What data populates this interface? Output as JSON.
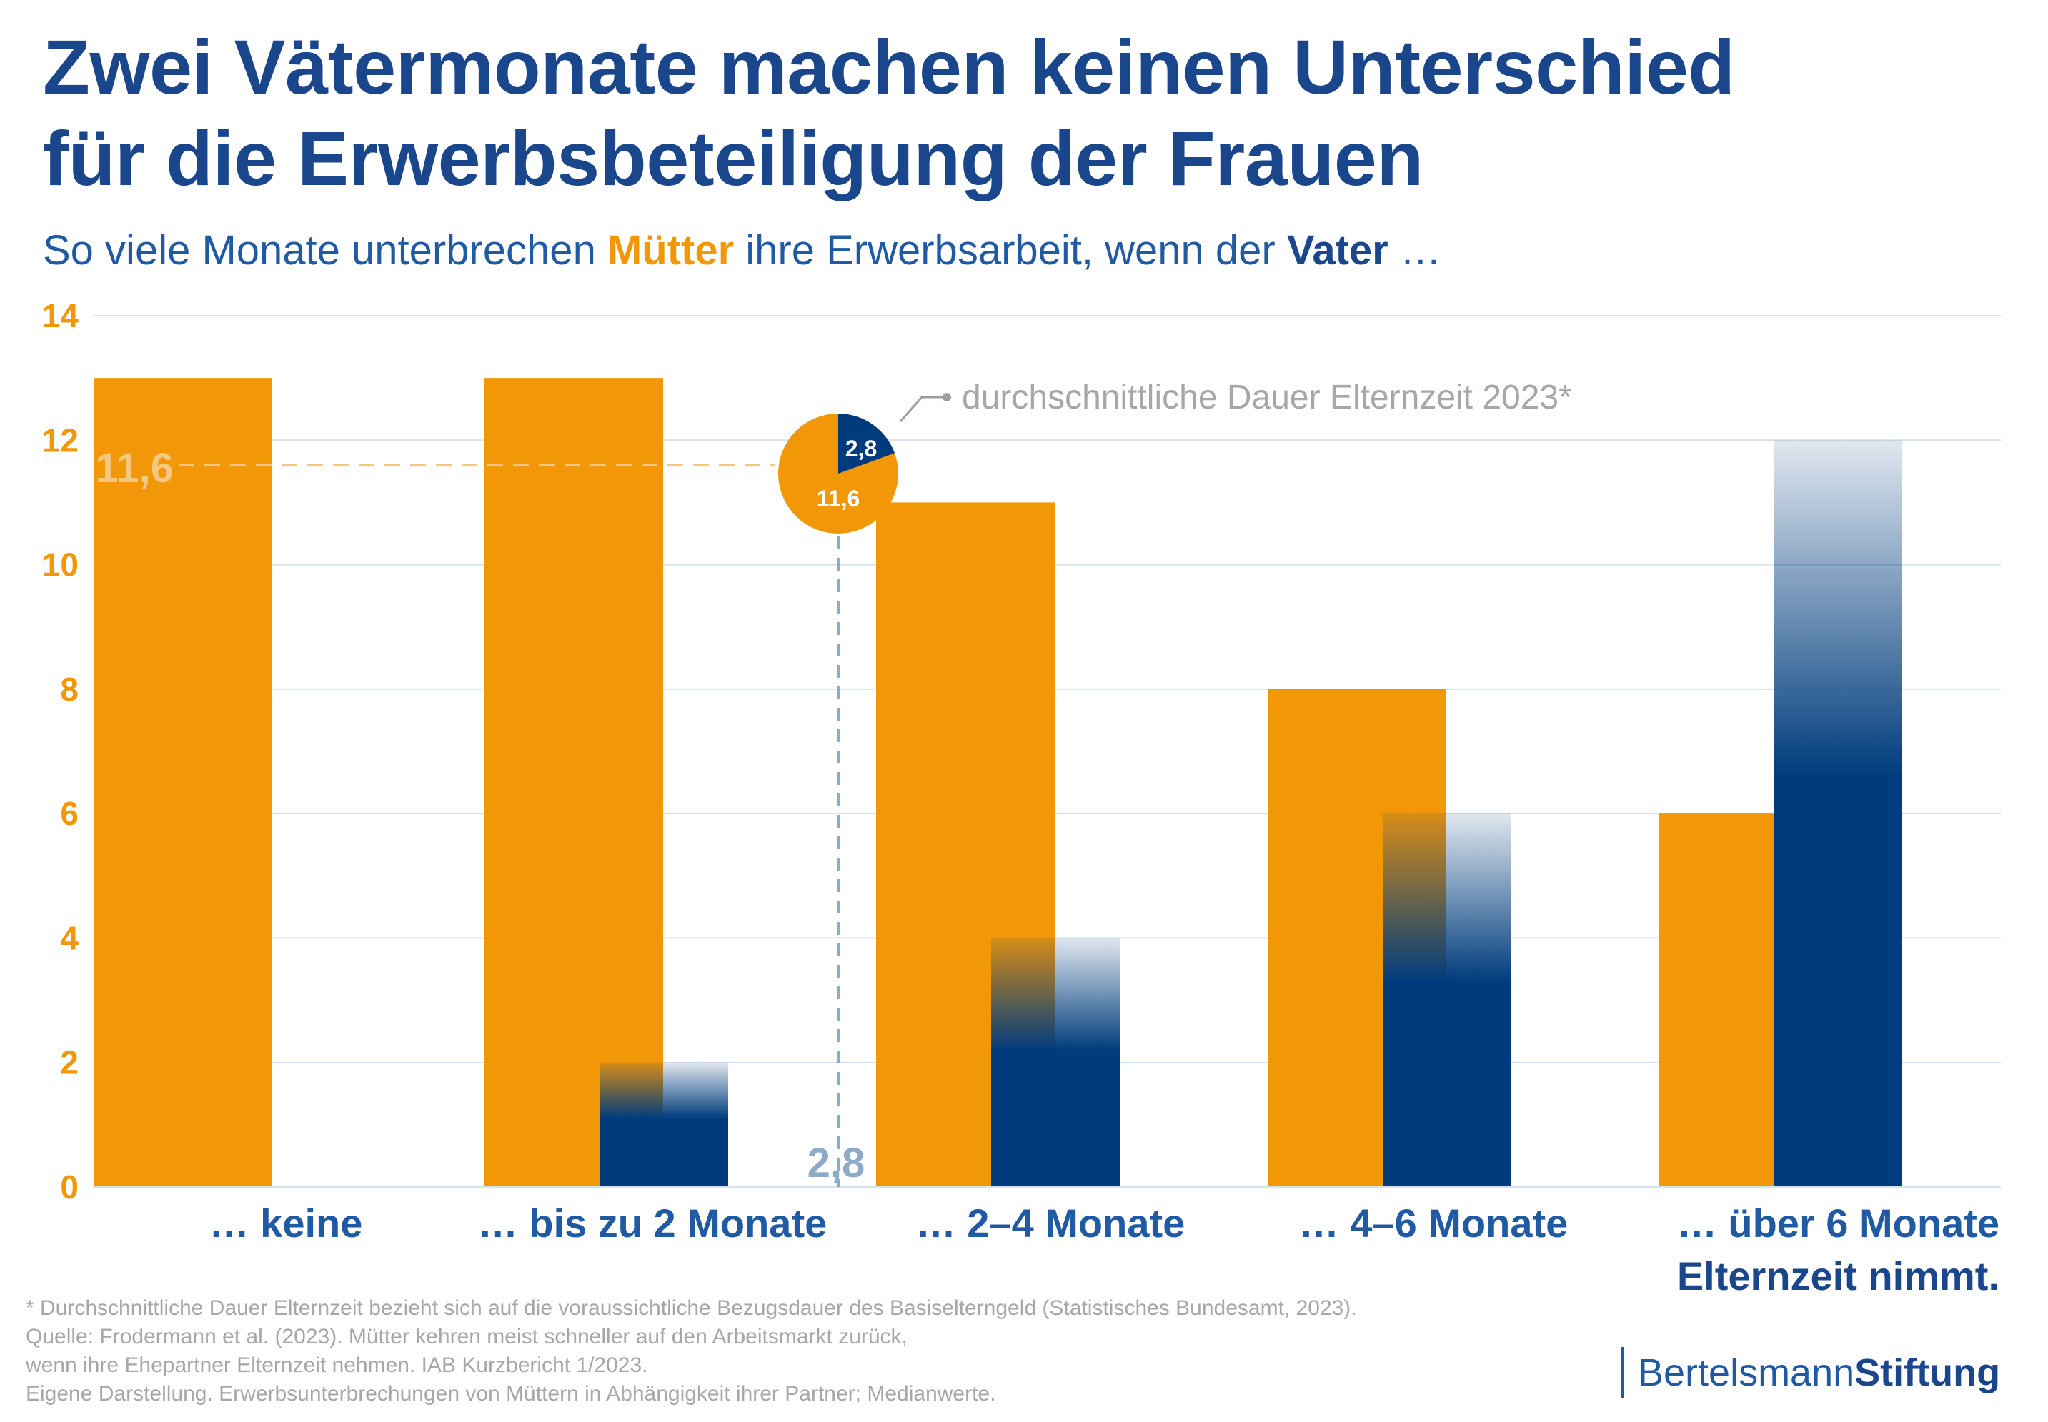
{
  "title": {
    "line1": "Zwei Vätermonate machen keinen Unterschied",
    "line2": "für die Erwerbsbeteiligung der Frauen"
  },
  "subtitle": {
    "part1": "So viele Monate unterbrechen ",
    "mothers": "Mütter",
    "part2": " ihre Erwerbsarbeit, wenn der ",
    "fathers": "Vater",
    "part3": " …"
  },
  "colors": {
    "mothers": "#f29708",
    "fathers": "#003c7d",
    "title": "#1a468c",
    "accent_text": "#1f5aa3",
    "mother_ref": "#f5c77f",
    "father_ref": "#8fa9c8",
    "grid": "#d5e2ef",
    "footnote": "#a4a7ab"
  },
  "chart_data": {
    "type": "bar",
    "categories": [
      "… keine",
      "… bis zu 2 Monate",
      "… 2–4 Monate",
      "… 4–6 Monate",
      "… über 6 Monate"
    ],
    "last_category_line2": "Elternzeit nimmt.",
    "series": [
      {
        "name": "Mütter",
        "values": [
          13,
          13,
          11,
          8,
          6
        ]
      },
      {
        "name": "Vater",
        "values": [
          null,
          2,
          4,
          6,
          12
        ]
      }
    ],
    "ylim": [
      0,
      14
    ],
    "yticks": [
      0,
      2,
      4,
      6,
      8,
      10,
      12,
      14
    ],
    "ytick_labels": [
      "0",
      "2",
      "4",
      "6",
      "8",
      "10",
      "12",
      "14"
    ],
    "grid": true,
    "reference": {
      "mothers_value": 11.6,
      "fathers_value": 2.8,
      "mothers_label": "11,6",
      "fathers_label": "2,8",
      "pie_mothers_label": "11,6",
      "pie_fathers_label": "2,8",
      "annotation": "durchschnittliche Dauer Elternzeit 2023*"
    }
  },
  "footnote": {
    "line1": "* Durchschnittliche Dauer Elternzeit bezieht sich auf die voraussichtliche Bezugsdauer des Basiselterngeld (Statistisches Bundesamt, 2023).",
    "line2": "Quelle: Frodermann et al. (2023). Mütter kehren meist schneller auf den Arbeitsmarkt zurück,",
    "line3": "wenn ihre Ehepartner Elternzeit nehmen. IAB Kurzbericht 1/2023.",
    "line4": "Eigene Darstellung. Erwerbsunterbrechungen von Müttern in Abhängigkeit ihrer Partner; Medianwerte."
  },
  "logo": {
    "part1": "Bertelsmann",
    "part2": "Stiftung"
  }
}
